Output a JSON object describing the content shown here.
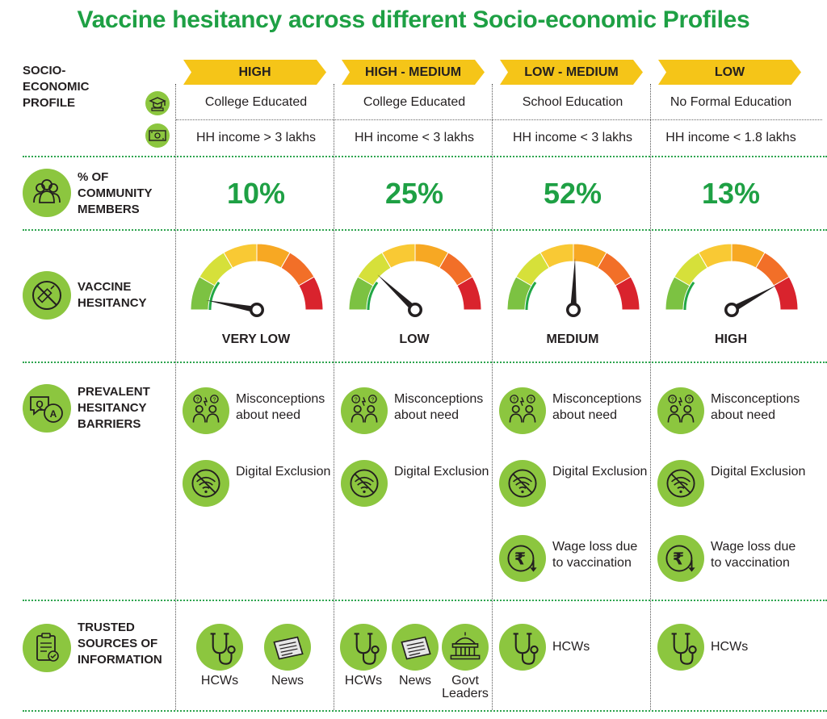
{
  "title": "Vaccine hesitancy across different Socio-economic Profiles",
  "row_labels": {
    "profile": [
      "SOCIO-",
      "ECONOMIC",
      "PROFILE"
    ],
    "community": [
      "% OF",
      "COMMUNITY",
      "MEMBERS"
    ],
    "hesitancy": [
      "VACCINE",
      "HESITANCY"
    ],
    "barriers": [
      "PREVALENT",
      "HESITANCY",
      "BARRIERS"
    ],
    "sources": [
      "TRUSTED",
      "SOURCES OF",
      "INFORMATION"
    ]
  },
  "columns": [
    {
      "profile": "HIGH",
      "education": "College Educated",
      "income": "HH income > 3 lakhs",
      "community_pct": "10%",
      "hesitancy_level": "VERY LOW",
      "needle_fraction": 0.06,
      "barriers": [
        "Misconceptions about need",
        "Digital Exclusion"
      ],
      "sources": [
        "HCWs",
        "News"
      ]
    },
    {
      "profile": "HIGH - MEDIUM",
      "education": "College Educated",
      "income": "HH income < 3 lakhs",
      "community_pct": "25%",
      "hesitancy_level": "LOW",
      "needle_fraction": 0.24,
      "barriers": [
        "Misconceptions about need",
        "Digital Exclusion"
      ],
      "sources": [
        "HCWs",
        "News",
        "Govt Leaders"
      ]
    },
    {
      "profile": "LOW - MEDIUM",
      "education": "School Education",
      "income": "HH income < 3 lakhs",
      "community_pct": "52%",
      "hesitancy_level": "MEDIUM",
      "needle_fraction": 0.51,
      "barriers": [
        "Misconceptions about need",
        "Digital Exclusion",
        "Wage loss due to vaccination"
      ],
      "sources": [
        "HCWs"
      ]
    },
    {
      "profile": "LOW",
      "education": "No Formal Education",
      "income": "HH income < 1.8 lakhs",
      "community_pct": "13%",
      "hesitancy_level": "HIGH",
      "needle_fraction": 0.84,
      "barriers": [
        "Misconceptions about need",
        "Digital Exclusion",
        "Wage loss due to vaccination"
      ],
      "sources": [
        "HCWs"
      ]
    }
  ],
  "colors": {
    "title": "#1ea044",
    "accent_green": "#8cc63f",
    "chevron": "#f5c518",
    "gauge": [
      "#7cc242",
      "#d6e03a",
      "#f9c934",
      "#f7a823",
      "#f26f28",
      "#d9232d"
    ]
  },
  "icons": {
    "education": "graduation-cap-icon",
    "income": "money-icon",
    "community": "people-group-icon",
    "hesitancy": "no-syringe-icon",
    "barriers": "qa-bubbles-icon",
    "sources": "clipboard-check-icon",
    "misconceptions": "confused-people-icon",
    "digital": "no-wifi-icon",
    "wage": "rupee-down-icon",
    "hcw": "stethoscope-icon",
    "news": "newspaper-icon",
    "govt": "government-building-icon"
  }
}
